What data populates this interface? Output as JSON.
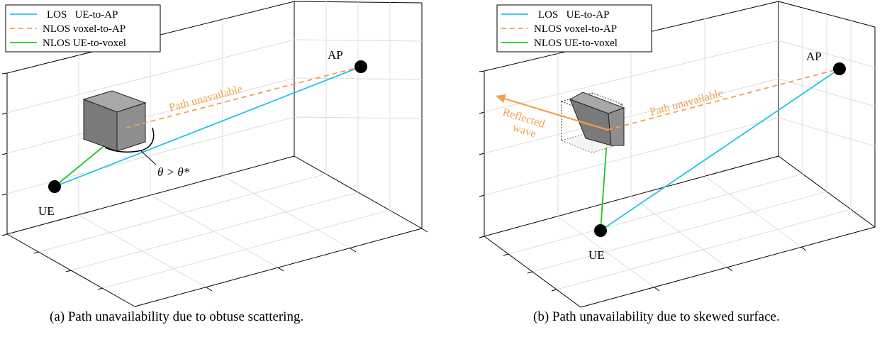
{
  "panels": [
    {
      "legend": [
        {
          "label": "LOS   UE-to-AP",
          "color": "#22c3e6",
          "style": "solid"
        },
        {
          "label": "NLOS voxel-to-AP",
          "color": "#f0a050",
          "style": "dashed"
        },
        {
          "label": "NLOS UE-to-voxel",
          "color": "#1ec41e",
          "style": "solid"
        }
      ],
      "ap_label": "AP",
      "ue_label": "UE",
      "path_label": "Path unavailable",
      "angle_label": "θ > θ*",
      "caption": "(a) Path unavailability due to obtuse scattering."
    },
    {
      "legend": [
        {
          "label": "LOS   UE-to-AP",
          "color": "#22c3e6",
          "style": "solid"
        },
        {
          "label": "NLOS voxel-to-AP",
          "color": "#f0a050",
          "style": "dashed"
        },
        {
          "label": "NLOS UE-to-voxel",
          "color": "#1ec41e",
          "style": "solid"
        }
      ],
      "ap_label": "AP",
      "ue_label": "UE",
      "path_label": "Path unavailable",
      "reflected_label_1": "Reflected",
      "reflected_label_2": "wave",
      "caption": "(b) Path unavailability due to skewed surface."
    }
  ],
  "colors": {
    "los": "#22c3e6",
    "nlos_voxel_ap": "#f0a050",
    "nlos_ue_voxel": "#1ec41e",
    "voxel": "#808080"
  }
}
